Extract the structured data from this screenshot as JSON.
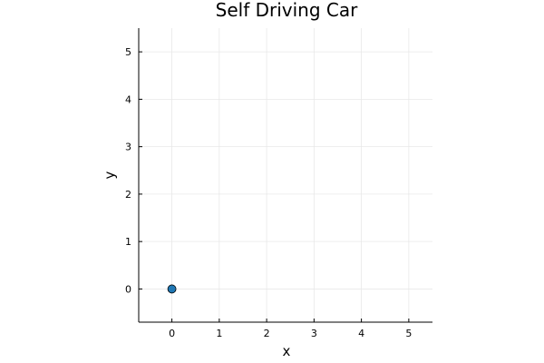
{
  "chart_data": {
    "type": "scatter",
    "title": "Self Driving Car",
    "xlabel": "x",
    "ylabel": "y",
    "xlim": [
      -0.7,
      5.5
    ],
    "ylim": [
      -0.7,
      5.5
    ],
    "xticks": [
      0,
      1,
      2,
      3,
      4,
      5
    ],
    "yticks": [
      0,
      1,
      2,
      3,
      4,
      5
    ],
    "grid": true,
    "legend": "none",
    "series": [
      {
        "points": [
          {
            "x": 0,
            "y": 0
          }
        ],
        "color": "#1f77b4"
      }
    ]
  }
}
